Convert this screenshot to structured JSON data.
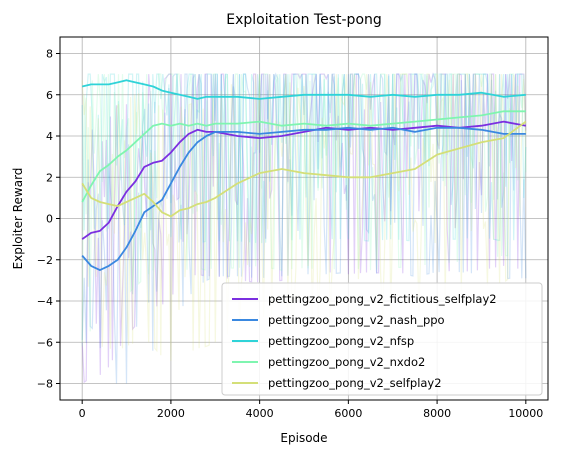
{
  "chart_data": {
    "type": "line",
    "title": "Exploitation Test-pong",
    "xlabel": "Episode",
    "ylabel": "Exploiter Reward",
    "xlim": [
      -500,
      10500
    ],
    "ylim": [
      -8.8,
      8.8
    ],
    "xticks": [
      0,
      2000,
      4000,
      6000,
      8000,
      10000
    ],
    "xtick_labels": [
      "0",
      "2000",
      "4000",
      "6000",
      "8000",
      "10000"
    ],
    "yticks": [
      -8,
      -6,
      -4,
      -2,
      0,
      2,
      4,
      6,
      8
    ],
    "ytick_labels": [
      "−8",
      "−6",
      "−4",
      "−2",
      "0",
      "2",
      "4",
      "6",
      "8"
    ],
    "grid": true,
    "legend_position": "bottom-right",
    "series": [
      {
        "name": "pettingzoo_pong_v2_fictitious_selfplay2",
        "color": "#7b2fe0",
        "x": [
          0,
          200,
          400,
          600,
          800,
          1000,
          1200,
          1400,
          1600,
          1800,
          2000,
          2200,
          2400,
          2600,
          2800,
          3000,
          3500,
          4000,
          4500,
          5000,
          5500,
          6000,
          6500,
          7000,
          7500,
          8000,
          8500,
          9000,
          9500,
          10000
        ],
        "values": [
          -1.0,
          -0.7,
          -0.6,
          -0.2,
          0.6,
          1.3,
          1.8,
          2.5,
          2.7,
          2.8,
          3.2,
          3.7,
          4.1,
          4.3,
          4.2,
          4.2,
          4.0,
          3.9,
          4.0,
          4.2,
          4.4,
          4.3,
          4.4,
          4.3,
          4.4,
          4.5,
          4.4,
          4.5,
          4.7,
          4.5
        ]
      },
      {
        "name": "pettingzoo_pong_v2_nash_ppo",
        "color": "#3a88e0",
        "x": [
          0,
          200,
          400,
          600,
          800,
          1000,
          1200,
          1400,
          1600,
          1800,
          2000,
          2200,
          2400,
          2600,
          2800,
          3000,
          3500,
          4000,
          4500,
          5000,
          5500,
          6000,
          6500,
          7000,
          7500,
          8000,
          8500,
          9000,
          9500,
          10000
        ],
        "values": [
          -1.8,
          -2.3,
          -2.5,
          -2.3,
          -2.0,
          -1.4,
          -0.6,
          0.3,
          0.6,
          0.9,
          1.7,
          2.5,
          3.2,
          3.7,
          4.0,
          4.2,
          4.2,
          4.1,
          4.2,
          4.3,
          4.3,
          4.4,
          4.3,
          4.4,
          4.2,
          4.4,
          4.4,
          4.3,
          4.1,
          4.1
        ]
      },
      {
        "name": "pettingzoo_pong_v2_nfsp",
        "color": "#2fd3d8",
        "x": [
          0,
          200,
          400,
          600,
          800,
          1000,
          1200,
          1400,
          1600,
          1800,
          2000,
          2200,
          2400,
          2600,
          2800,
          3000,
          3500,
          4000,
          4500,
          5000,
          5500,
          6000,
          6500,
          7000,
          7500,
          8000,
          8500,
          9000,
          9500,
          10000
        ],
        "values": [
          6.4,
          6.5,
          6.5,
          6.5,
          6.6,
          6.7,
          6.6,
          6.5,
          6.4,
          6.2,
          6.1,
          6.0,
          5.9,
          5.8,
          5.9,
          5.9,
          5.9,
          5.8,
          5.9,
          6.0,
          6.0,
          6.0,
          5.9,
          6.0,
          5.9,
          6.0,
          6.0,
          6.1,
          5.9,
          6.0
        ]
      },
      {
        "name": "pettingzoo_pong_v2_nxdo2",
        "color": "#7ff5b0",
        "x": [
          0,
          200,
          400,
          600,
          800,
          1000,
          1200,
          1400,
          1600,
          1800,
          2000,
          2200,
          2400,
          2600,
          2800,
          3000,
          3500,
          4000,
          4500,
          5000,
          5500,
          6000,
          6500,
          7000,
          7500,
          8000,
          8500,
          9000,
          9500,
          10000
        ],
        "values": [
          0.8,
          1.6,
          2.3,
          2.6,
          3.0,
          3.3,
          3.7,
          4.1,
          4.5,
          4.6,
          4.5,
          4.6,
          4.5,
          4.6,
          4.5,
          4.6,
          4.6,
          4.7,
          4.5,
          4.6,
          4.5,
          4.6,
          4.5,
          4.6,
          4.7,
          4.8,
          4.9,
          5.0,
          5.2,
          5.2
        ]
      },
      {
        "name": "pettingzoo_pong_v2_selfplay2",
        "color": "#d4df78",
        "x": [
          0,
          200,
          400,
          600,
          800,
          1000,
          1200,
          1400,
          1600,
          1800,
          2000,
          2200,
          2400,
          2600,
          2800,
          3000,
          3500,
          4000,
          4500,
          5000,
          5500,
          6000,
          6500,
          7000,
          7500,
          8000,
          8500,
          9000,
          9500,
          10000
        ],
        "values": [
          1.7,
          1.0,
          0.8,
          0.7,
          0.6,
          0.8,
          1.0,
          1.2,
          0.8,
          0.3,
          0.1,
          0.4,
          0.5,
          0.7,
          0.8,
          1.0,
          1.7,
          2.2,
          2.4,
          2.2,
          2.1,
          2.0,
          2.0,
          2.2,
          2.4,
          3.1,
          3.4,
          3.7,
          3.9,
          4.7
        ]
      }
    ]
  }
}
